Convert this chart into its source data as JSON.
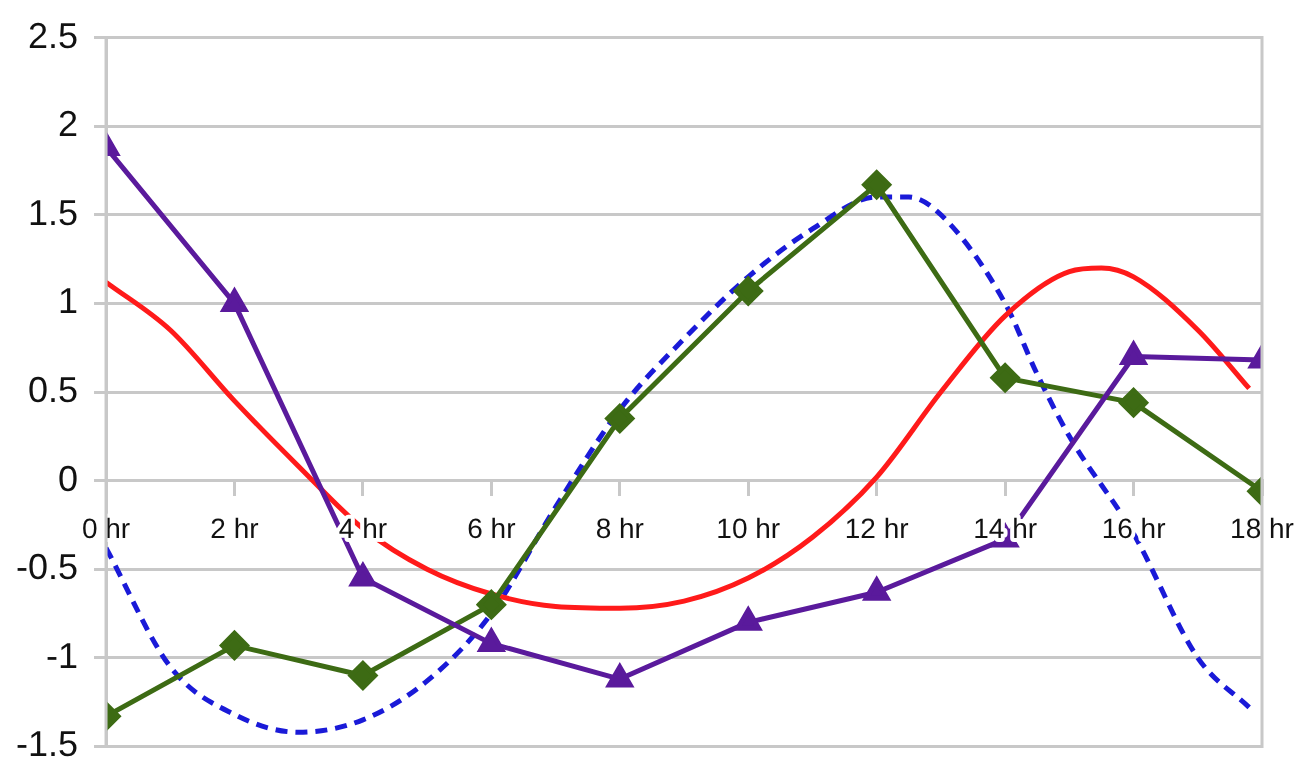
{
  "chart_data": {
    "type": "line",
    "xlim": [
      0,
      18
    ],
    "xticks": [
      {
        "value": 0,
        "label": "0 hr"
      },
      {
        "value": 2,
        "label": "2 hr"
      },
      {
        "value": 4,
        "label": "4 hr"
      },
      {
        "value": 6,
        "label": "6 hr"
      },
      {
        "value": 8,
        "label": "8 hr"
      },
      {
        "value": 10,
        "label": "10 hr"
      },
      {
        "value": 12,
        "label": "12 hr"
      },
      {
        "value": 14,
        "label": "14 hr"
      },
      {
        "value": 16,
        "label": "16 hr"
      },
      {
        "value": 18,
        "label": "18 hr"
      }
    ],
    "ylim": [
      -1.5,
      2.5
    ],
    "yticks": [
      -1.5,
      -1,
      -0.5,
      0,
      0.5,
      1,
      1.5,
      2,
      2.5
    ],
    "grid": "y",
    "legend": false,
    "x": [
      0,
      2,
      4,
      6,
      8,
      10,
      12,
      14,
      16,
      18
    ],
    "series": [
      {
        "color": "#5a1a9c",
        "marker": "triangle",
        "line_style": "solid",
        "values": [
          1.88,
          1.0,
          -0.55,
          -0.92,
          -1.12,
          -0.8,
          -0.63,
          -0.33,
          0.7,
          0.68
        ]
      },
      {
        "color": "#3d6b14",
        "marker": "diamond",
        "line_style": "solid",
        "values": [
          -1.33,
          -0.93,
          -1.1,
          -0.7,
          0.35,
          1.07,
          1.67,
          0.58,
          0.44,
          -0.06
        ]
      },
      {
        "color": "#ff1a1a",
        "marker": "none",
        "line_style": "solid",
        "x": [
          0,
          1,
          2,
          3,
          4,
          5,
          6,
          7,
          8,
          9,
          10,
          11,
          12,
          13,
          14,
          15,
          15.5,
          16,
          17,
          17.8
        ],
        "values": [
          1.12,
          0.85,
          0.45,
          0.08,
          -0.27,
          -0.5,
          -0.64,
          -0.71,
          -0.72,
          -0.68,
          -0.55,
          -0.32,
          0.02,
          0.5,
          0.93,
          1.18,
          1.2,
          1.15,
          0.85,
          0.52
        ]
      },
      {
        "color": "#1a1ad8",
        "marker": "none",
        "line_style": "dashed",
        "x": [
          0,
          1,
          2,
          3,
          4,
          5,
          6,
          7,
          8,
          9,
          10,
          11,
          12,
          12.5,
          13,
          14,
          14.5,
          15,
          16,
          17,
          17.8
        ],
        "values": [
          -0.38,
          -1.05,
          -1.32,
          -1.42,
          -1.35,
          -1.13,
          -0.75,
          -0.15,
          0.4,
          0.8,
          1.15,
          1.42,
          1.6,
          1.6,
          1.5,
          1.0,
          0.6,
          0.25,
          -0.3,
          -1.0,
          -1.28
        ]
      }
    ]
  }
}
